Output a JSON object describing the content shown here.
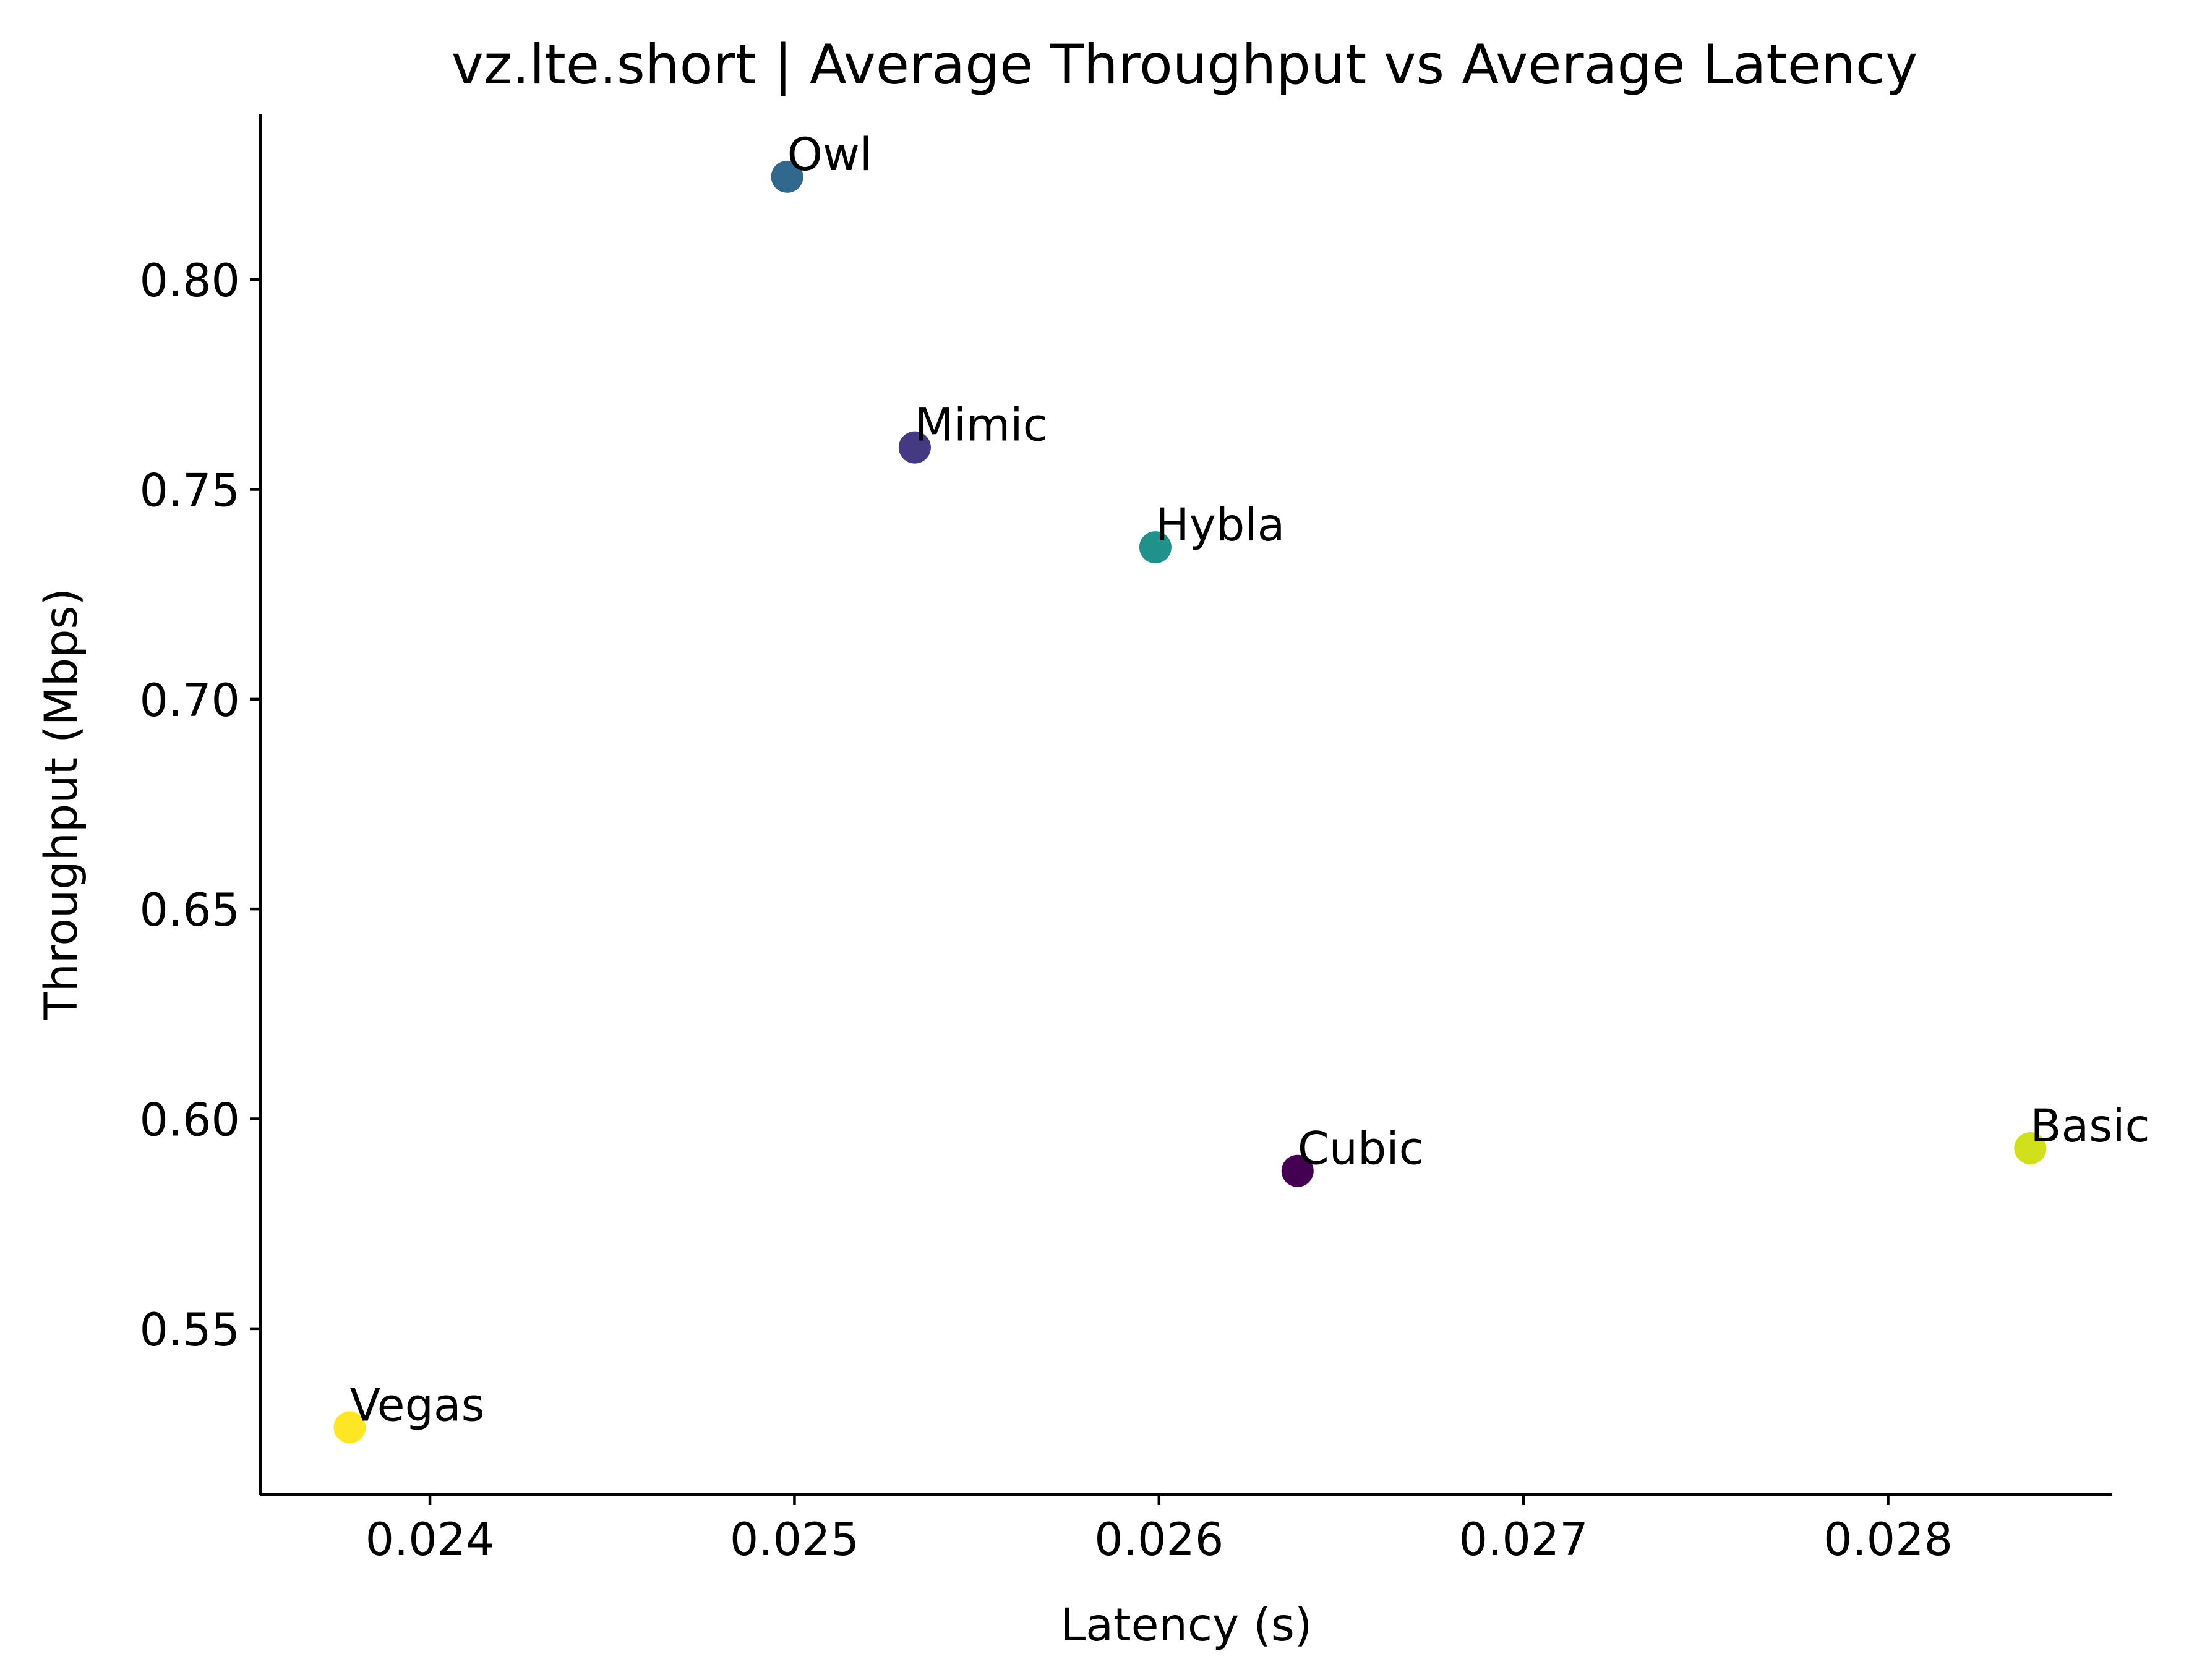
{
  "chart_data": {
    "type": "scatter",
    "title": "vz.lte.short | Average Throughput vs Average Latency",
    "xlabel": "Latency (s)",
    "ylabel": "Throughput (Mbps)",
    "xlim": [
      0.023535,
      0.028615
    ],
    "ylim": [
      0.5105,
      0.8395
    ],
    "xticks": [
      0.024,
      0.025,
      0.026,
      0.027,
      0.028
    ],
    "xtick_labels": [
      "0.024",
      "0.025",
      "0.026",
      "0.027",
      "0.028"
    ],
    "yticks": [
      0.55,
      0.6,
      0.65,
      0.7,
      0.75,
      0.8
    ],
    "ytick_labels": [
      "0.55",
      "0.60",
      "0.65",
      "0.70",
      "0.75",
      "0.80"
    ],
    "grid": false,
    "colormap": "viridis",
    "points": [
      {
        "label": "Owl",
        "x": 0.02498,
        "y": 0.8245,
        "color": "#31688e"
      },
      {
        "label": "Mimic",
        "x": 0.02533,
        "y": 0.76,
        "color": "#443983"
      },
      {
        "label": "Hybla",
        "x": 0.02599,
        "y": 0.7362,
        "color": "#21918c"
      },
      {
        "label": "Cubic",
        "x": 0.02638,
        "y": 0.5876,
        "color": "#440154"
      },
      {
        "label": "Basic",
        "x": 0.02839,
        "y": 0.593,
        "color": "#d0e11c"
      },
      {
        "label": "Vegas",
        "x": 0.02378,
        "y": 0.5265,
        "color": "#fde725"
      }
    ]
  }
}
